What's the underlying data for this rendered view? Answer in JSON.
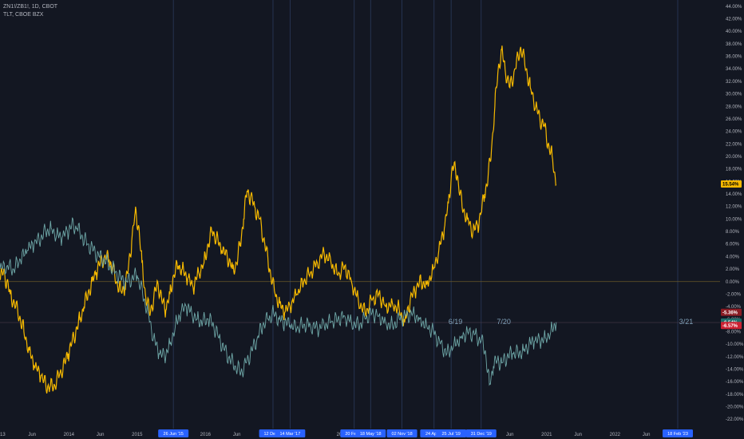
{
  "chart_data": {
    "type": "line",
    "legend": [
      "ZN1!/ZB1!, 1D, CBOT",
      "TLT, CBOE BZX"
    ],
    "y_ticks": [
      "44.00%",
      "42.00%",
      "40.00%",
      "38.00%",
      "36.00%",
      "34.00%",
      "32.00%",
      "30.00%",
      "28.00%",
      "26.00%",
      "24.00%",
      "22.00%",
      "20.00%",
      "18.00%",
      "16.00%",
      "14.00%",
      "12.00%",
      "10.00%",
      "8.00%",
      "6.00%",
      "4.00%",
      "2.00%",
      "0.00%",
      "-2.00%",
      "-4.00%",
      "-6.00%",
      "-8.00%",
      "-10.00%",
      "-12.00%",
      "-14.00%",
      "-16.00%",
      "-18.00%",
      "-20.00%",
      "-22.00%"
    ],
    "ylim": [
      -23.5,
      45
    ],
    "x_ticks": [
      "2013",
      "Jun",
      "2014",
      "Jun",
      "2015",
      "2016",
      "Jun",
      "2017",
      "2018",
      "2019",
      "Jun",
      "2020",
      "Jun",
      "2021",
      "Jun",
      "2022",
      "Jun",
      "2023"
    ],
    "x_tick_pos": [
      2012.95,
      2013.42,
      2013.96,
      2014.42,
      2014.96,
      2015.96,
      2016.42,
      2016.96,
      2017.96,
      2018.96,
      2019.42,
      2019.96,
      2020.42,
      2020.96,
      2021.42,
      2021.96,
      2022.42,
      2022.96
    ],
    "xlim": [
      2012.95,
      2023.5
    ],
    "price_badges": [
      {
        "text": "15.54%",
        "value": 15.54,
        "color": "#f5b800",
        "text_color": "#000000"
      },
      {
        "text": "-5.36%",
        "value": -5.36,
        "color": "#8a1c24",
        "text_color": "#ffffff"
      },
      {
        "text": "-6.54%",
        "value": -6.54,
        "color": "#1f6e6a",
        "text_color": "#ffffff"
      },
      {
        "text": "-6.57%",
        "value": -6.57,
        "color": "#cc2233",
        "text_color": "#ffffff"
      }
    ],
    "highlight_labels": [
      {
        "text": "26 Jun '15",
        "x": 2015.49
      },
      {
        "text": "12 Dec '1",
        "x": 2016.95
      },
      {
        "text": "14 Mar '17",
        "x": 2017.2
      },
      {
        "text": "20 Feb '1",
        "x": 2018.14
      },
      {
        "text": "18 May '18",
        "x": 2018.38
      },
      {
        "text": "02 Nov '18",
        "x": 2018.84
      },
      {
        "text": "24 Apr '1",
        "x": 2019.31
      },
      {
        "text": "25 Jul '19",
        "x": 2019.56
      },
      {
        "text": "31 Dec '19",
        "x": 2020.0
      },
      {
        "text": "18 Feb '23",
        "x": 2022.88
      }
    ],
    "mark_labels": [
      {
        "text": "6/19",
        "x": 2019.52,
        "y": -6.8
      },
      {
        "text": "7/20",
        "x": 2020.23,
        "y": -6.8
      },
      {
        "text": "3/21",
        "x": 2022.9,
        "y": -6.8
      }
    ],
    "vlines": [
      2015.49,
      2016.95,
      2017.2,
      2018.14,
      2018.38,
      2018.84,
      2019.31,
      2019.56,
      2020.0,
      2022.88
    ],
    "series": [
      {
        "name": "ZN1!/ZB1!",
        "color": "#f5b800",
        "x": [
          2012.95,
          2013.0,
          2013.05,
          2013.1,
          2013.18,
          2013.25,
          2013.3,
          2013.38,
          2013.45,
          2013.55,
          2013.62,
          2013.68,
          2013.75,
          2013.82,
          2013.9,
          2013.95,
          2014.0,
          2014.06,
          2014.12,
          2014.18,
          2014.24,
          2014.3,
          2014.36,
          2014.42,
          2014.48,
          2014.55,
          2014.6,
          2014.66,
          2014.72,
          2014.78,
          2014.83,
          2014.88,
          2014.93,
          2014.98,
          2015.03,
          2015.08,
          2015.14,
          2015.2,
          2015.26,
          2015.32,
          2015.38,
          2015.44,
          2015.49,
          2015.56,
          2015.62,
          2015.7,
          2015.78,
          2015.86,
          2015.94,
          2016.0,
          2016.06,
          2016.12,
          2016.2,
          2016.28,
          2016.36,
          2016.42,
          2016.47,
          2016.52,
          2016.57,
          2016.62,
          2016.68,
          2016.75,
          2016.83,
          2016.9,
          2016.98,
          2017.05,
          2017.12,
          2017.2,
          2017.3,
          2017.4,
          2017.5,
          2017.6,
          2017.7,
          2017.8,
          2017.9,
          2018.0,
          2018.1,
          2018.2,
          2018.3,
          2018.4,
          2018.5,
          2018.6,
          2018.7,
          2018.8,
          2018.88,
          2018.96,
          2019.05,
          2019.12,
          2019.2,
          2019.3,
          2019.38,
          2019.46,
          2019.52,
          2019.58,
          2019.65,
          2019.72,
          2019.8,
          2019.88,
          2019.95,
          2020.0,
          2020.05,
          2020.1,
          2020.15,
          2020.2,
          2020.25,
          2020.3,
          2020.35,
          2020.42,
          2020.5,
          2020.58,
          2020.66,
          2020.72,
          2020.8,
          2020.86,
          2020.92,
          2020.98,
          2021.04,
          2021.1
        ],
        "values": [
          0.5,
          1.5,
          0.0,
          -2.0,
          -4.0,
          -6.0,
          -8.0,
          -11.0,
          -13.5,
          -15.0,
          -16.5,
          -17.0,
          -16.5,
          -15.0,
          -13.0,
          -11.5,
          -10.0,
          -8.0,
          -6.0,
          -4.0,
          -2.0,
          0.0,
          1.5,
          3.0,
          4.0,
          3.5,
          2.0,
          0.0,
          -1.5,
          -1.0,
          2.0,
          6.5,
          11.0,
          9.0,
          3.0,
          -2.0,
          -5.0,
          -3.0,
          0.0,
          -3.0,
          -4.5,
          -2.0,
          1.0,
          2.5,
          2.0,
          0.5,
          -1.0,
          1.5,
          3.0,
          6.0,
          8.0,
          7.0,
          5.0,
          4.0,
          2.0,
          3.0,
          6.0,
          10.0,
          14.5,
          13.5,
          12.0,
          10.0,
          6.0,
          2.0,
          -2.0,
          -3.5,
          -5.0,
          -4.0,
          -2.0,
          0.0,
          1.5,
          3.0,
          4.5,
          3.0,
          1.0,
          2.5,
          0.0,
          -3.0,
          -5.0,
          -3.0,
          -2.0,
          -4.0,
          -3.5,
          -4.5,
          -6.5,
          -3.0,
          -1.0,
          0.0,
          -0.5,
          2.0,
          5.0,
          8.5,
          12.5,
          18.5,
          17.0,
          12.0,
          10.0,
          8.0,
          9.0,
          11.0,
          14.0,
          16.5,
          21.0,
          28.0,
          34.0,
          37.0,
          34.0,
          31.0,
          34.0,
          37.5,
          34.0,
          31.0,
          28.0,
          26.0,
          25.0,
          22.0,
          20.0,
          15.5
        ]
      },
      {
        "name": "TLT",
        "color": "#6fa8a8",
        "x": [
          2012.95,
          2013.05,
          2013.15,
          2013.25,
          2013.35,
          2013.45,
          2013.55,
          2013.62,
          2013.7,
          2013.78,
          2013.86,
          2013.94,
          2014.0,
          2014.08,
          2014.16,
          2014.24,
          2014.32,
          2014.4,
          2014.48,
          2014.56,
          2014.64,
          2014.72,
          2014.8,
          2014.88,
          2014.96,
          2015.04,
          2015.12,
          2015.2,
          2015.28,
          2015.36,
          2015.44,
          2015.52,
          2015.6,
          2015.68,
          2015.76,
          2015.84,
          2015.92,
          2016.0,
          2016.08,
          2016.16,
          2016.24,
          2016.32,
          2016.4,
          2016.48,
          2016.56,
          2016.64,
          2016.72,
          2016.8,
          2016.88,
          2016.96,
          2017.04,
          2017.12,
          2017.2,
          2017.3,
          2017.4,
          2017.5,
          2017.6,
          2017.7,
          2017.8,
          2017.9,
          2018.0,
          2018.1,
          2018.2,
          2018.3,
          2018.4,
          2018.5,
          2018.6,
          2018.7,
          2018.8,
          2018.9,
          2019.0,
          2019.1,
          2019.2,
          2019.3,
          2019.4,
          2019.5,
          2019.6,
          2019.7,
          2019.8,
          2019.9,
          2020.0,
          2020.06,
          2020.12,
          2020.18,
          2020.24,
          2020.3,
          2020.38,
          2020.46,
          2020.54,
          2020.62,
          2020.7,
          2020.78,
          2020.86,
          2020.94,
          2021.02,
          2021.1
        ],
        "values": [
          2.0,
          2.5,
          2.0,
          3.5,
          5.0,
          6.0,
          7.0,
          8.0,
          8.5,
          7.5,
          7.0,
          8.0,
          9.0,
          8.5,
          7.0,
          6.0,
          5.0,
          4.0,
          3.5,
          2.5,
          1.5,
          0.5,
          0.0,
          0.5,
          1.0,
          -2.0,
          -5.0,
          -9.0,
          -11.5,
          -12.0,
          -10.0,
          -7.0,
          -5.0,
          -4.0,
          -5.0,
          -6.0,
          -6.5,
          -6.0,
          -7.0,
          -9.0,
          -11.0,
          -12.5,
          -13.5,
          -14.5,
          -13.0,
          -11.0,
          -9.0,
          -7.0,
          -6.0,
          -5.0,
          -6.0,
          -6.5,
          -7.0,
          -7.5,
          -6.8,
          -7.0,
          -7.5,
          -7.0,
          -6.5,
          -6.0,
          -5.5,
          -6.5,
          -7.0,
          -6.0,
          -5.0,
          -5.5,
          -6.5,
          -7.0,
          -6.0,
          -5.5,
          -5.0,
          -6.0,
          -7.0,
          -8.0,
          -10.0,
          -11.5,
          -10.0,
          -9.0,
          -8.0,
          -8.5,
          -9.5,
          -11.0,
          -16.5,
          -13.5,
          -12.5,
          -13.0,
          -12.0,
          -11.5,
          -11.5,
          -11.0,
          -10.0,
          -9.5,
          -9.5,
          -9.0,
          -8.0,
          -6.5
        ]
      }
    ]
  }
}
